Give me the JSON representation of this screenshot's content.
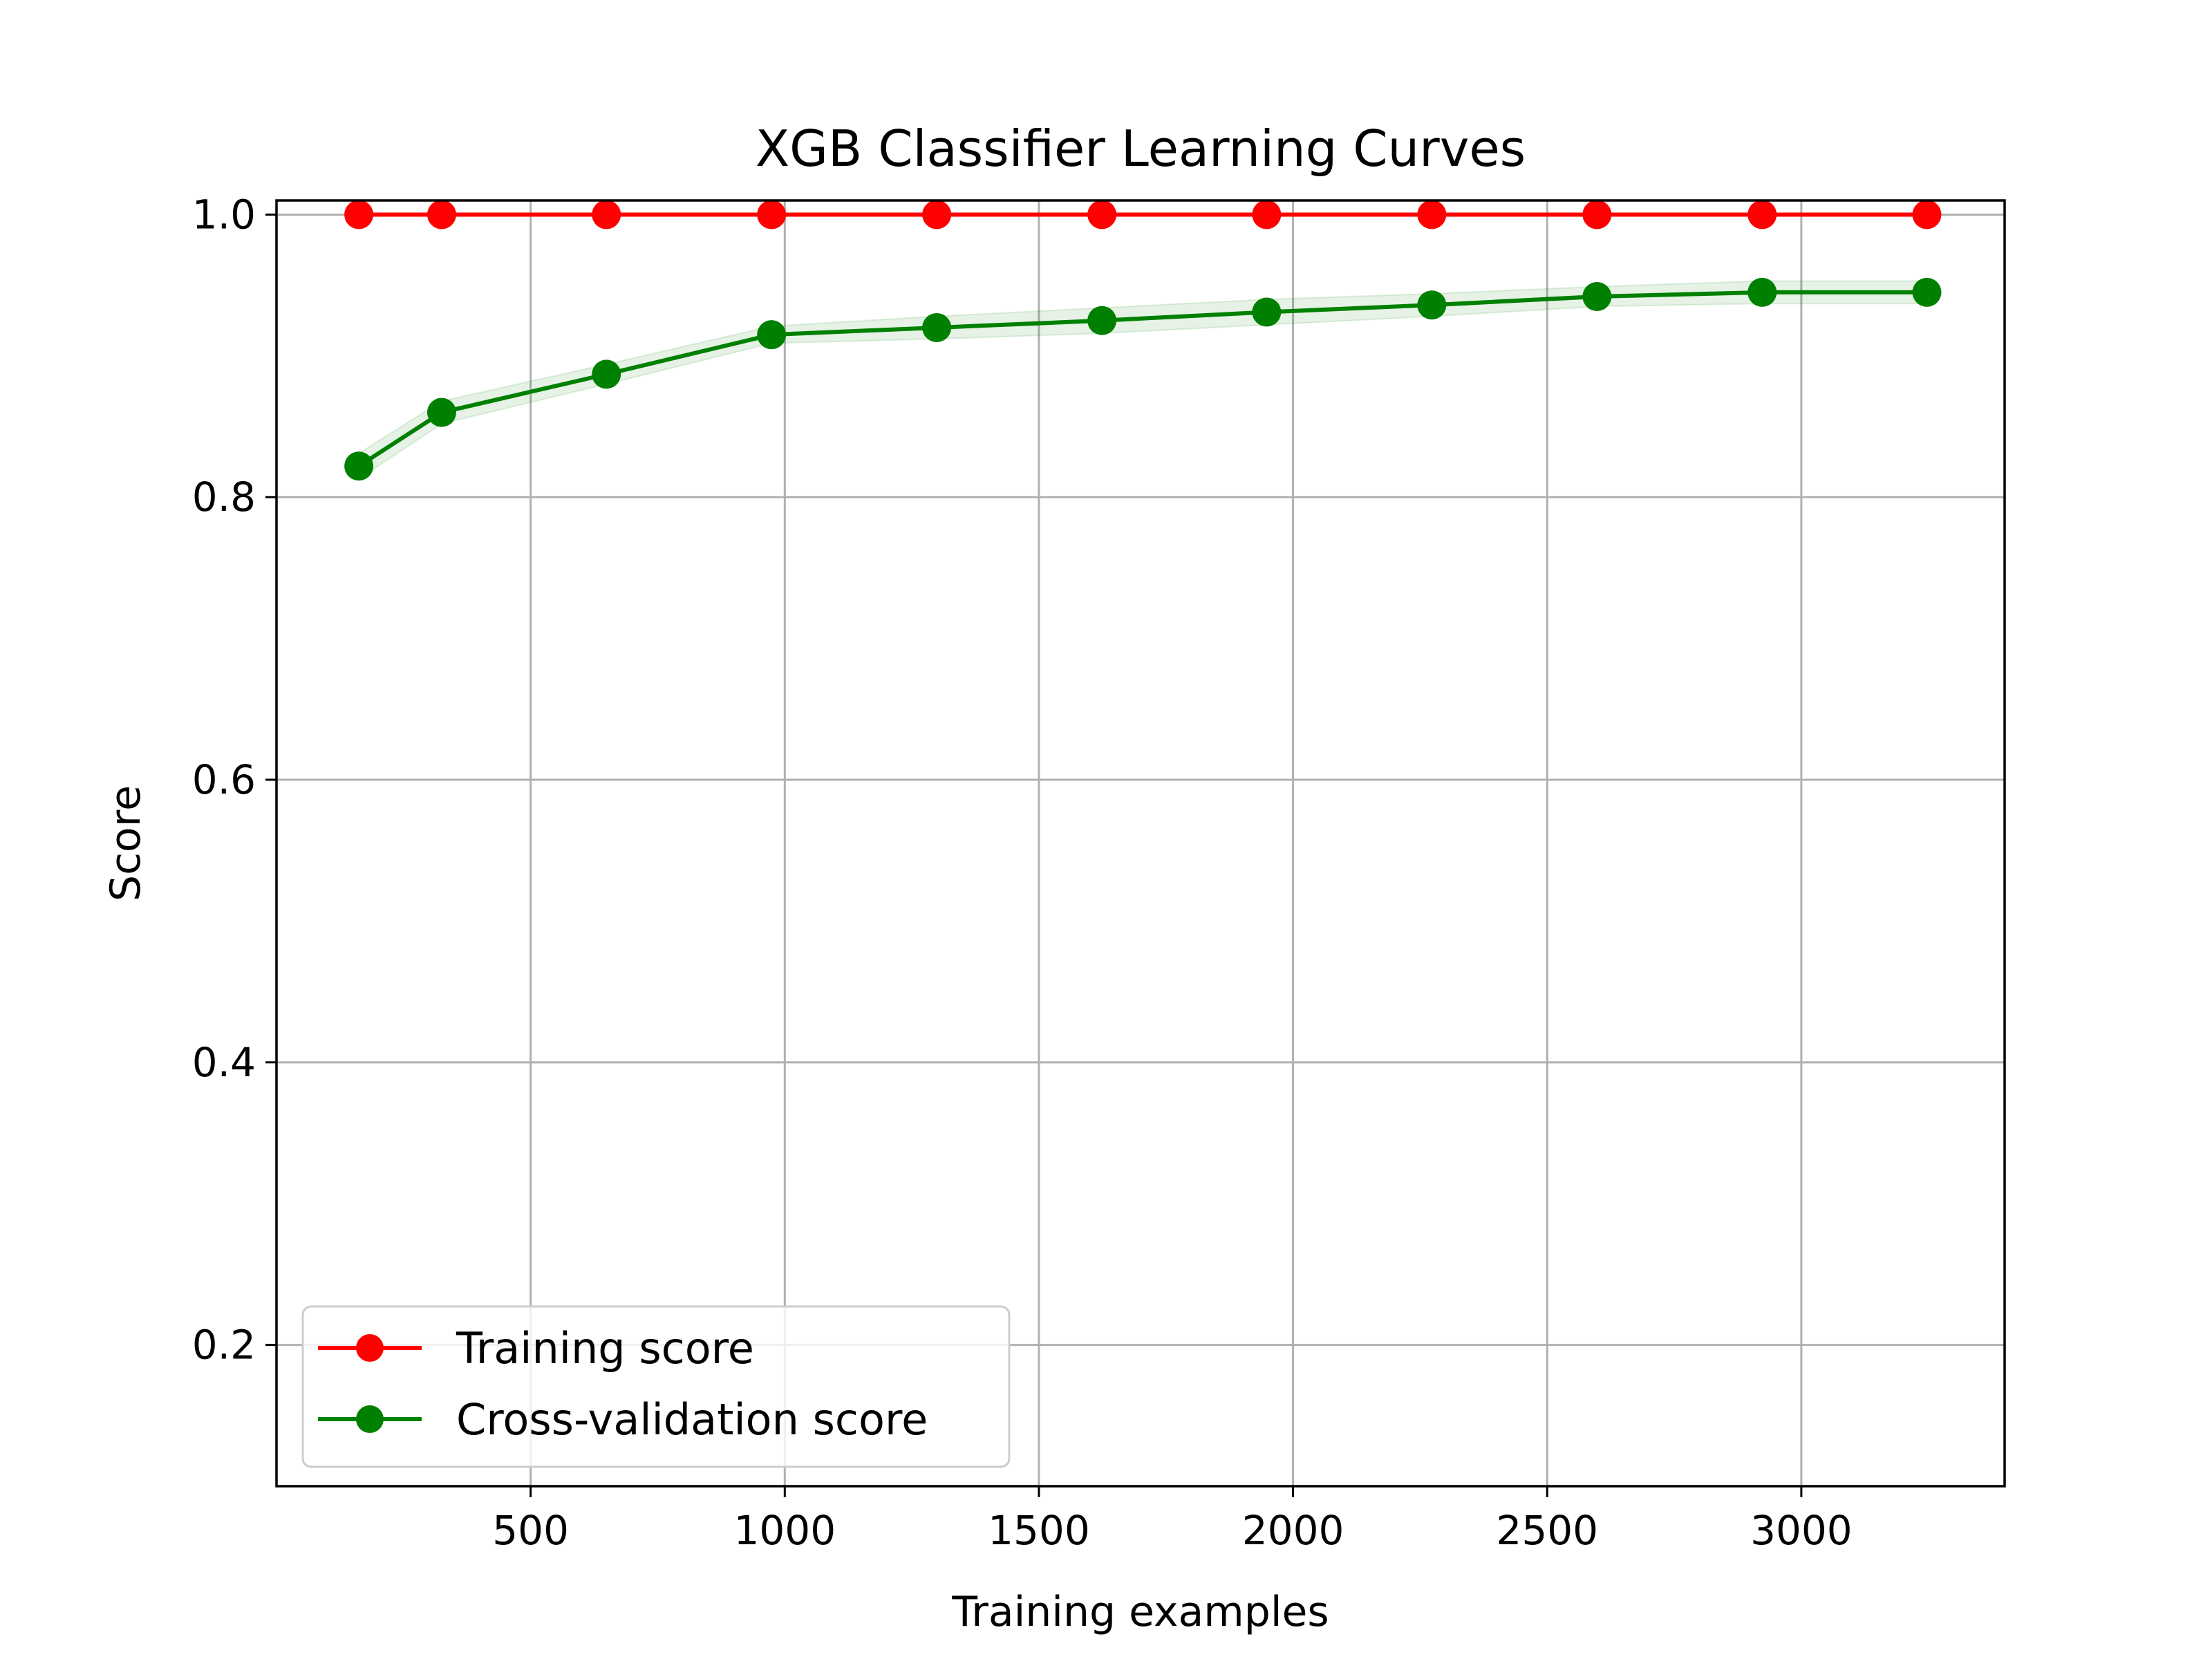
{
  "chart_data": {
    "type": "line",
    "title": "XGB Classifier Learning Curves",
    "xlabel": "Training examples",
    "ylabel": "Score",
    "xlim": [
      0,
      3400
    ],
    "ylim": [
      0.1,
      1.01
    ],
    "xticks": [
      500,
      1000,
      1500,
      2000,
      2500,
      3000
    ],
    "xtick_labels": [
      "500",
      "1000",
      "1500",
      "2000",
      "2500",
      "3000"
    ],
    "yticks": [
      0.2,
      0.4,
      0.6,
      0.8,
      1.0
    ],
    "ytick_labels": [
      "0.2",
      "0.4",
      "0.6",
      "0.8",
      "1.0"
    ],
    "grid": true,
    "legend_position": "lower-left",
    "x": [
      162,
      325,
      649,
      974,
      1299,
      1624,
      1948,
      2273,
      2598,
      2923,
      3247
    ],
    "series": [
      {
        "name": "Training score",
        "color": "#ff0000",
        "values": [
          1.0,
          1.0,
          1.0,
          1.0,
          1.0,
          1.0,
          1.0,
          1.0,
          1.0,
          1.0,
          1.0
        ],
        "std": [
          0.0,
          0.0,
          0.0,
          0.0,
          0.0,
          0.0,
          0.0,
          0.0,
          0.0,
          0.0,
          0.0
        ]
      },
      {
        "name": "Cross-validation score",
        "color": "#008000",
        "band_color": "#008000",
        "values": [
          0.822,
          0.86,
          0.887,
          0.915,
          0.92,
          0.925,
          0.931,
          0.936,
          0.942,
          0.945,
          0.945
        ],
        "std": [
          0.009,
          0.008,
          0.007,
          0.006,
          0.008,
          0.009,
          0.009,
          0.008,
          0.007,
          0.008,
          0.008
        ]
      }
    ]
  }
}
